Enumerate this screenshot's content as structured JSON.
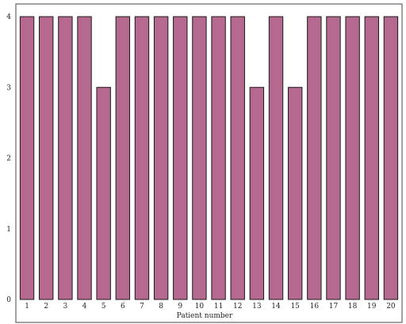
{
  "chart_data": {
    "type": "bar",
    "xlabel": "Patient number",
    "ylabel": "",
    "categories": [
      "1",
      "2",
      "3",
      "4",
      "5",
      "6",
      "7",
      "8",
      "9",
      "10",
      "11",
      "12",
      "13",
      "14",
      "15",
      "16",
      "17",
      "18",
      "19",
      "20"
    ],
    "values": [
      4,
      4,
      4,
      4,
      3,
      4,
      4,
      4,
      4,
      4,
      4,
      4,
      3,
      4,
      3,
      4,
      4,
      4,
      4,
      4
    ],
    "ylim": [
      0,
      4
    ],
    "yticks": [
      "0",
      "1",
      "2",
      "3",
      "4"
    ],
    "grid": false,
    "bar_color": "#b5698f",
    "bar_edge_color": "#1a1a1a"
  }
}
